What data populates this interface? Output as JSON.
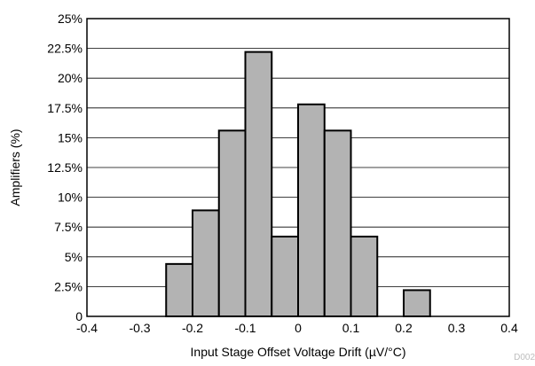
{
  "chart_data": {
    "type": "bar",
    "subtype": "histogram",
    "xlabel": "Input Stage Offset Voltage Drift (µV/°C)",
    "ylabel": "Amplifiers (%)",
    "xlim": [
      -0.4,
      0.4
    ],
    "ylim": [
      0,
      25
    ],
    "bin_width": 0.05,
    "x_ticks": [
      "-0.4",
      "-0.3",
      "-0.2",
      "-0.1",
      "0",
      "0.1",
      "0.2",
      "0.3",
      "0.4"
    ],
    "y_ticks": [
      "0",
      "2.5%",
      "5%",
      "7.5%",
      "10%",
      "12.5%",
      "15%",
      "17.5%",
      "20%",
      "22.5%",
      "25%"
    ],
    "bins": [
      {
        "start": -0.25,
        "end": -0.2,
        "value": 4.4
      },
      {
        "start": -0.2,
        "end": -0.15,
        "value": 8.9
      },
      {
        "start": -0.15,
        "end": -0.1,
        "value": 15.6
      },
      {
        "start": -0.1,
        "end": -0.05,
        "value": 22.2
      },
      {
        "start": -0.05,
        "end": 0.0,
        "value": 6.7
      },
      {
        "start": 0.0,
        "end": 0.05,
        "value": 17.8
      },
      {
        "start": 0.05,
        "end": 0.1,
        "value": 15.6
      },
      {
        "start": 0.1,
        "end": 0.15,
        "value": 6.7
      },
      {
        "start": 0.15,
        "end": 0.2,
        "value": 0
      },
      {
        "start": 0.2,
        "end": 0.25,
        "value": 2.2
      }
    ],
    "grid": true,
    "bar_color": "#b3b3b3",
    "bar_edge_color": "#000000"
  },
  "figure_id": "D002"
}
